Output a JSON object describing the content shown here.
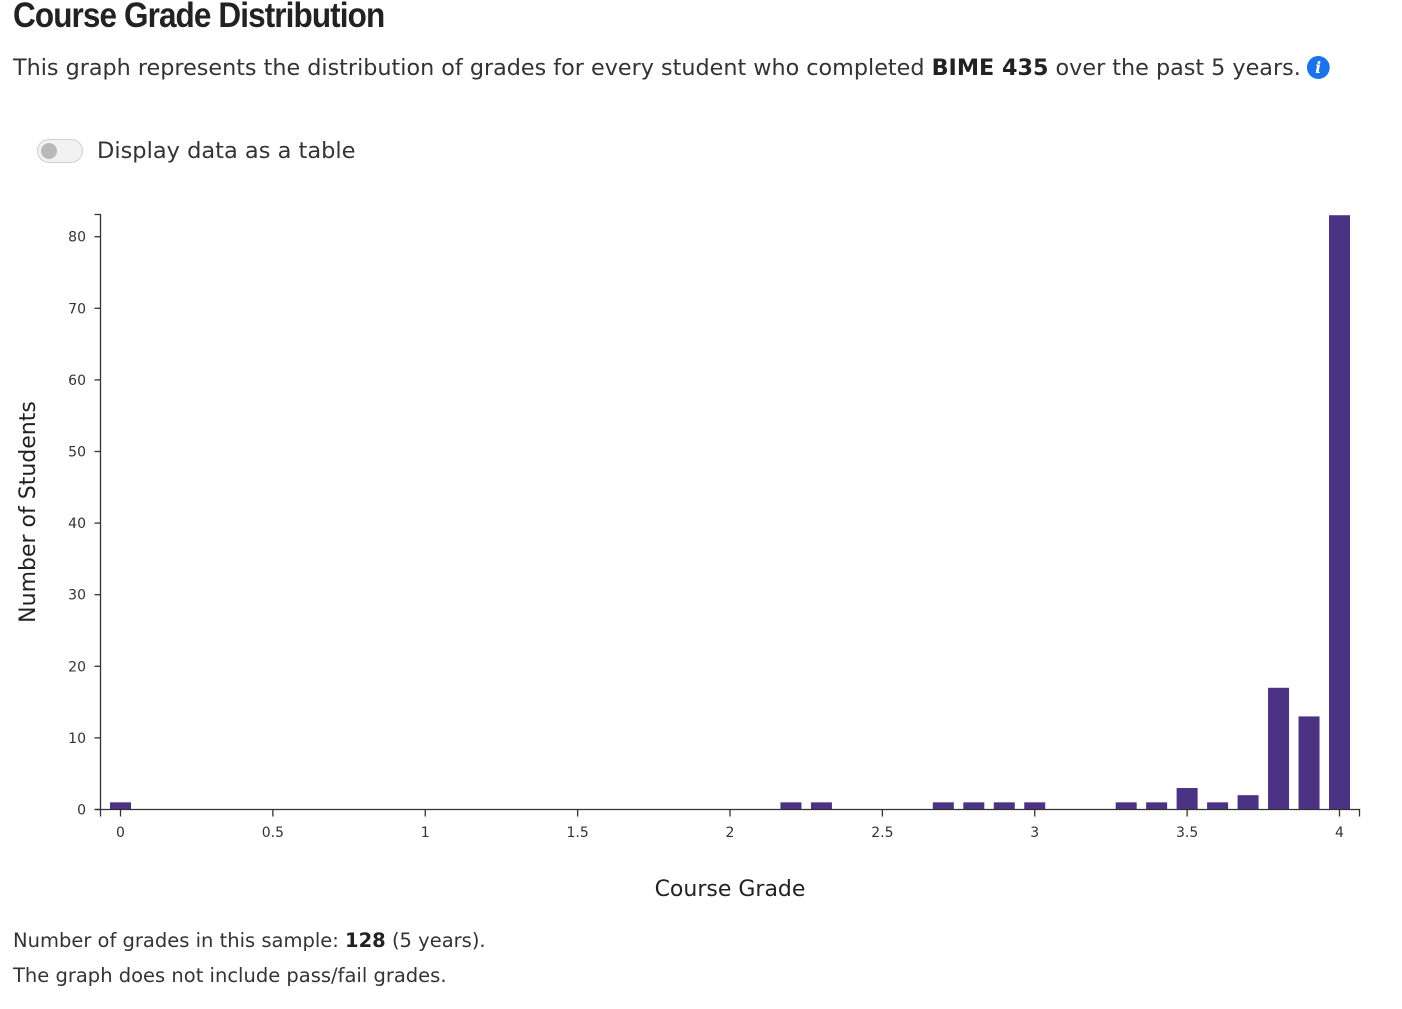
{
  "header": {
    "title": "Course Grade Distribution",
    "desc_pre": "This graph represents the distribution of grades for every student who completed ",
    "course": "BIME 435",
    "desc_post": " over the past 5 years.",
    "info_icon": "i"
  },
  "toggle": {
    "label": "Display data as a table",
    "checked": false
  },
  "chart_data": {
    "type": "bar",
    "title": "",
    "xlabel": "Course Grade",
    "ylabel": "Number of Students",
    "xlim": [
      0,
      4
    ],
    "ylim": [
      0,
      80
    ],
    "x_ticks": [
      "0",
      "0.5",
      "1",
      "1.5",
      "2",
      "2.5",
      "3",
      "3.5",
      "4"
    ],
    "y_ticks": [
      "0",
      "10",
      "20",
      "30",
      "40",
      "50",
      "60",
      "70",
      "80"
    ],
    "bar_color": "#4b3282",
    "x": [
      0.0,
      2.2,
      2.3,
      2.7,
      2.8,
      2.9,
      3.0,
      3.3,
      3.4,
      3.5,
      3.6,
      3.7,
      3.8,
      3.9,
      4.0
    ],
    "values": [
      1,
      1,
      1,
      1,
      1,
      1,
      1,
      1,
      1,
      3,
      1,
      2,
      17,
      13,
      83
    ],
    "grid": false
  },
  "footer": {
    "count_pre": "Number of grades in this sample: ",
    "count": "128",
    "count_post": " (5 years).",
    "note": "The graph does not include pass/fail grades."
  }
}
